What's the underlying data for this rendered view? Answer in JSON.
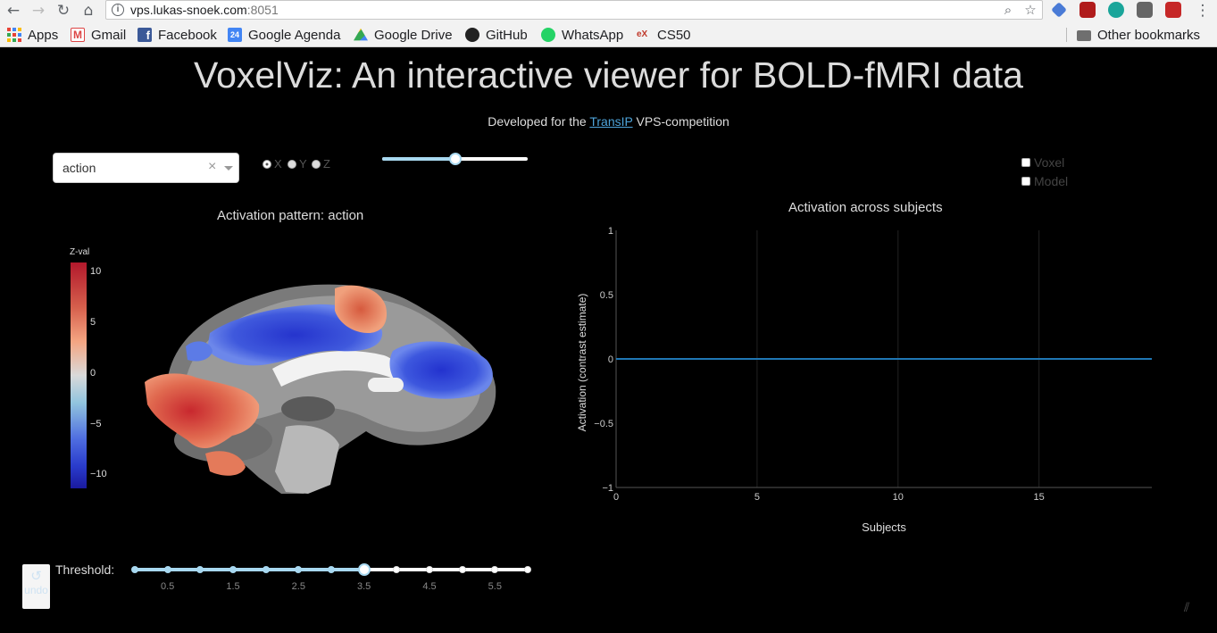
{
  "browser": {
    "url_host": "vps.lukas-snoek.com",
    "url_port": ":8051",
    "bookmarks": [
      "Apps",
      "Gmail",
      "Facebook",
      "Google Agenda",
      "Google Drive",
      "GitHub",
      "WhatsApp",
      "CS50"
    ],
    "other_bookmarks": "Other bookmarks"
  },
  "app": {
    "title": "VoxelViz: An interactive viewer for BOLD-fMRI data",
    "subtitle_pre": "Developed for the ",
    "subtitle_link": "TransIP",
    "subtitle_post": " VPS-competition",
    "contrast_selected": "action",
    "select_clear": "×",
    "axis_options": [
      "X",
      "Y",
      "Z"
    ],
    "axis_selected": "X",
    "slice_value": 0.5,
    "checkbox_voxel": "Voxel",
    "checkbox_model": "Model",
    "undo_label": "undo"
  },
  "brain_plot": {
    "title": "Activation pattern: action",
    "colorbar_title": "Z-val",
    "colorbar_ticks": [
      "10",
      "5",
      "0",
      "−5",
      "−10"
    ]
  },
  "threshold": {
    "label": "Threshold:",
    "ticks": [
      "0.5",
      "1.5",
      "2.5",
      "3.5",
      "4.5",
      "5.5"
    ],
    "value": 3.5,
    "min": 0,
    "max": 6,
    "step": 0.5
  },
  "chart_data": {
    "type": "line",
    "title": "Activation across subjects",
    "xlabel": "Subjects",
    "ylabel": "Activation (contrast estimate)",
    "xlim": [
      0,
      19
    ],
    "ylim": [
      -1,
      1
    ],
    "xticks": [
      0,
      5,
      10,
      15
    ],
    "yticks": [
      1,
      0.5,
      0,
      -0.5,
      -1
    ],
    "ytick_labels": [
      "1",
      "0.5",
      "0",
      "−0.5",
      "−1"
    ],
    "series": [
      {
        "x": [
          0,
          19
        ],
        "y": [
          0,
          0
        ],
        "color": "#1f77b4"
      }
    ]
  }
}
